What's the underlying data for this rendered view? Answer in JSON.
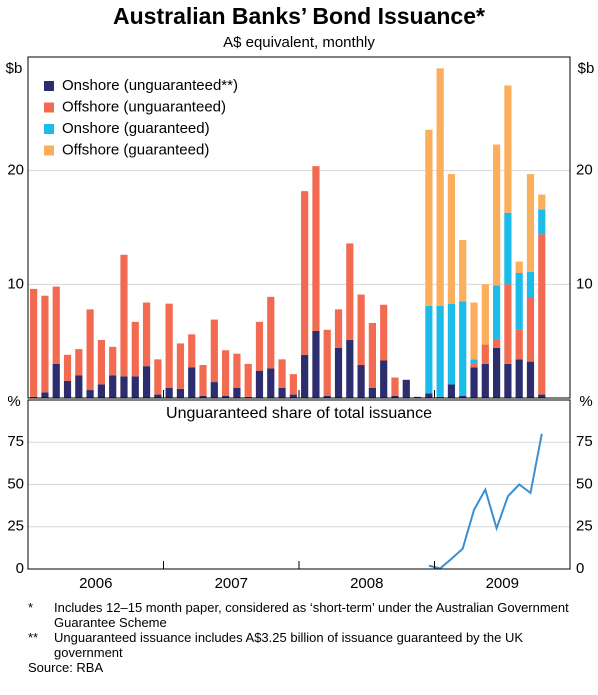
{
  "chart_data": [
    {
      "type": "bar",
      "stacked": true,
      "title": "Australian Banks’ Bond Issuance*",
      "subtitle": "A$ equivalent, monthly",
      "y_unit": "$b",
      "legend": "upper left",
      "grid": true,
      "categories": [
        null,
        null,
        null,
        null,
        null,
        null,
        null,
        null,
        null,
        null,
        null,
        null,
        null,
        null,
        null,
        null,
        null,
        null,
        null,
        null,
        null,
        null,
        null,
        null,
        null,
        null,
        null,
        null,
        null,
        null,
        null,
        null,
        null,
        null,
        null,
        null,
        null,
        null,
        null,
        null,
        null,
        null,
        null,
        null,
        null,
        null
      ],
      "ylim": [
        0,
        30
      ],
      "yticks": [
        10,
        20
      ],
      "series": [
        {
          "name": "Onshore (unguaranteed**)",
          "color": "#2b2d6e",
          "values": [
            0.1,
            0.5,
            3.0,
            1.5,
            2.0,
            0.7,
            1.2,
            2.0,
            1.9,
            1.9,
            2.8,
            0.3,
            0.9,
            0.8,
            2.7,
            0.2,
            1.4,
            0.2,
            0.9,
            0.1,
            2.4,
            2.6,
            0.9,
            0.3,
            3.8,
            5.9,
            0.2,
            4.4,
            5.1,
            2.9,
            0.9,
            3.3,
            0.2,
            1.6,
            0.1,
            0.4,
            0.1,
            1.2,
            0.2,
            2.7,
            3.0,
            4.4,
            3.0,
            3.4,
            3.2,
            0.3
          ]
        },
        {
          "name": "Offshore (unguaranteed)",
          "color": "#f26b50",
          "values": [
            9.5,
            8.5,
            6.8,
            2.3,
            2.3,
            7.1,
            3.9,
            2.5,
            10.7,
            4.8,
            5.6,
            3.1,
            7.4,
            4.0,
            2.9,
            2.7,
            5.5,
            4.0,
            3.0,
            2.9,
            4.3,
            6.3,
            2.5,
            1.8,
            14.4,
            14.5,
            5.8,
            3.4,
            8.5,
            6.2,
            5.7,
            4.9,
            1.6,
            0,
            0,
            0,
            0,
            0,
            0,
            0.3,
            1.7,
            0.8,
            7.0,
            2.6,
            5.6,
            14.1
          ]
        },
        {
          "name": "Onshore (guaranteed)",
          "color": "#1cbbea",
          "values": [
            0,
            0,
            0,
            0,
            0,
            0,
            0,
            0,
            0,
            0,
            0,
            0,
            0,
            0,
            0,
            0,
            0,
            0,
            0,
            0,
            0,
            0,
            0,
            0,
            0,
            0,
            0,
            0,
            0,
            0,
            0,
            0,
            0,
            0,
            0,
            7.7,
            8.0,
            7.1,
            8.3,
            0.4,
            0,
            4.7,
            6.3,
            5.0,
            2.3,
            2.2
          ]
        },
        {
          "name": "Offshore (guaranteed)",
          "color": "#fbae5c",
          "values": [
            0,
            0,
            0,
            0,
            0,
            0,
            0,
            0,
            0,
            0,
            0,
            0,
            0,
            0,
            0,
            0,
            0,
            0,
            0,
            0,
            0,
            0,
            0,
            0,
            0,
            0,
            0,
            0,
            0,
            0,
            0,
            0,
            0,
            0,
            0,
            15.5,
            20.9,
            11.4,
            5.4,
            5.0,
            5.3,
            12.4,
            11.2,
            1.0,
            8.6,
            1.3
          ]
        }
      ]
    },
    {
      "type": "line",
      "title": "Unguaranteed share of total issuance",
      "y_unit": "%",
      "grid": true,
      "categories": [
        null,
        null,
        null,
        null,
        null,
        null,
        null,
        null,
        null,
        null,
        null,
        null,
        null,
        null,
        null,
        null,
        null,
        null,
        null,
        null,
        null,
        null,
        null,
        null,
        null,
        null,
        null,
        null,
        null,
        null,
        null,
        null,
        null,
        null,
        null,
        null,
        null,
        null,
        null,
        null,
        null,
        null,
        null,
        null,
        null,
        null
      ],
      "ylim": [
        0,
        100
      ],
      "yticks": [
        0,
        25,
        50,
        75
      ],
      "series": [
        {
          "color": "#3b8fd1",
          "values": [
            null,
            null,
            null,
            null,
            null,
            null,
            null,
            null,
            null,
            null,
            null,
            null,
            null,
            null,
            null,
            null,
            null,
            null,
            null,
            null,
            null,
            null,
            null,
            null,
            null,
            null,
            null,
            null,
            null,
            null,
            null,
            null,
            null,
            null,
            null,
            2,
            0.3,
            6,
            12,
            35,
            47,
            24,
            43,
            50,
            45,
            80
          ]
        }
      ]
    }
  ],
  "x_labels": [
    "2006",
    "2007",
    "2008",
    "2009"
  ],
  "notes": [
    {
      "marker": "*",
      "text": "Includes 12–15 month paper, considered as ‘short-term’ under the Australian Government Guarantee Scheme"
    },
    {
      "marker": "**",
      "text": "Unguaranteed issuance includes A$3.25 billion of issuance guaranteed by the UK government"
    }
  ],
  "source": "Source: RBA"
}
